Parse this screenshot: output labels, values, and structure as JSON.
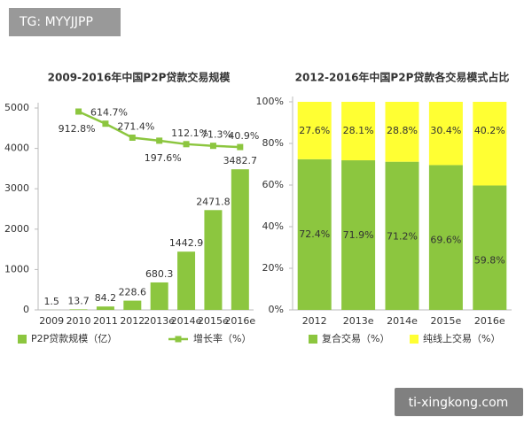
{
  "watermarks": {
    "top_left": "TG: MYYJJPP",
    "bottom_right": "ti-xingkong.com"
  },
  "chart_data": [
    {
      "type": "bar",
      "title": "2009-2016年中国P2P贷款交易规模",
      "categories": [
        "2009",
        "2010",
        "2011",
        "2012",
        "2013e",
        "2014e",
        "2015e",
        "2016e"
      ],
      "series": [
        {
          "name": "P2P贷款规模（亿）",
          "color": "#8cc63f",
          "values": [
            1.5,
            13.7,
            84.2,
            228.6,
            680.3,
            1442.9,
            2471.8,
            3482.7
          ]
        },
        {
          "name": "增长率（%）",
          "type": "line",
          "axis": "y2",
          "color": "#8cc63f",
          "values": [
            null,
            912.8,
            614.7,
            271.4,
            197.6,
            112.1,
            71.3,
            40.9
          ],
          "value_labels": [
            null,
            "912.8%",
            "614.7%",
            "271.4%",
            "197.6%",
            "112.1%",
            "71.3%",
            "40.9%"
          ]
        }
      ],
      "ylim": [
        0,
        5000
      ],
      "yticks": [
        0,
        1000,
        2000,
        3000,
        4000,
        5000
      ],
      "y2lim": [
        -3960,
        1000
      ]
    },
    {
      "type": "stacked_bar",
      "title": "2012-2016年中国P2P贷款各交易模式占比",
      "categories": [
        "2012",
        "2013e",
        "2014e",
        "2015e",
        "2016e"
      ],
      "series": [
        {
          "name": "复合交易（%）",
          "color": "#8cc63f",
          "values": [
            72.4,
            71.9,
            71.2,
            69.6,
            59.8
          ],
          "value_labels": [
            "72.4%",
            "71.9%",
            "71.2%",
            "69.6%",
            "59.8%"
          ]
        },
        {
          "name": "纯线上交易（%）",
          "color": "#ffff33",
          "values": [
            27.6,
            28.1,
            28.8,
            30.4,
            40.2
          ],
          "value_labels": [
            "27.6%",
            "28.1%",
            "28.8%",
            "30.4%",
            "40.2%"
          ]
        }
      ],
      "ylim": [
        0,
        100
      ],
      "yticks": [
        {
          "value": 0,
          "label": "0%"
        },
        {
          "value": 20,
          "label": "20%"
        },
        {
          "value": 40,
          "label": "40%"
        },
        {
          "value": 60,
          "label": "60%"
        },
        {
          "value": 80,
          "label": "80%"
        },
        {
          "value": 100,
          "label": "100%"
        }
      ]
    }
  ]
}
